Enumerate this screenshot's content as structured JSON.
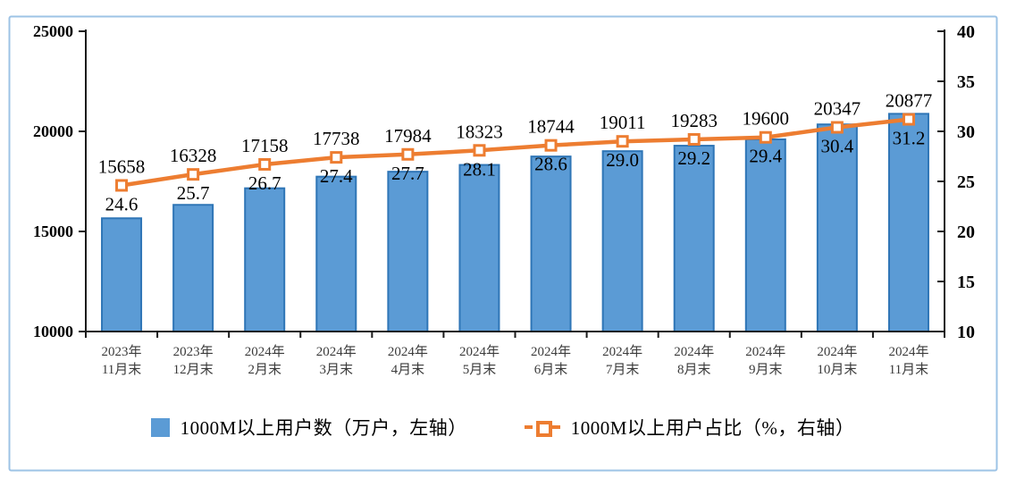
{
  "frame": {
    "border_color": "#9DC3E6",
    "background": "#ffffff"
  },
  "colors": {
    "bar_fill": "#5B9BD5",
    "bar_stroke": "#2E75B6",
    "line": "#ED7D31",
    "marker_fill": "#FFFFFF",
    "axis": "#1a1a1a",
    "label_text": "#000000",
    "category_text": "#3b3b3b"
  },
  "chart_data": {
    "type": "bar",
    "subtype": "bar-line-combo",
    "categories": [
      "2023年 11月末",
      "2023年 12月末",
      "2024年 2月末",
      "2024年 3月末",
      "2024年 4月末",
      "2024年 5月末",
      "2024年 6月末",
      "2024年 7月末",
      "2024年 8月末",
      "2024年 9月末",
      "2024年 10月末",
      "2024年 11月末"
    ],
    "categories_two_line": [
      [
        "2023年",
        "11月末"
      ],
      [
        "2023年",
        "12月末"
      ],
      [
        "2024年",
        "2月末"
      ],
      [
        "2024年",
        "3月末"
      ],
      [
        "2024年",
        "4月末"
      ],
      [
        "2024年",
        "5月末"
      ],
      [
        "2024年",
        "6月末"
      ],
      [
        "2024年",
        "7月末"
      ],
      [
        "2024年",
        "8月末"
      ],
      [
        "2024年",
        "9月末"
      ],
      [
        "2024年",
        "10月末"
      ],
      [
        "2024年",
        "11月末"
      ]
    ],
    "series": [
      {
        "name": "1000M以上用户数（万户，左轴）",
        "type": "bar",
        "axis": "left",
        "values": [
          15658,
          16328,
          17158,
          17738,
          17984,
          18323,
          18744,
          19011,
          19283,
          19600,
          20347,
          20877
        ]
      },
      {
        "name": "1000M以上用户占比（%，右轴）",
        "type": "line",
        "axis": "right",
        "values": [
          24.6,
          25.7,
          26.7,
          27.4,
          27.7,
          28.1,
          28.6,
          29.0,
          29.2,
          29.4,
          30.4,
          31.2
        ]
      }
    ],
    "left_axis": {
      "min": 10000,
      "max": 25000,
      "ticks": [
        25000,
        20000,
        15000,
        10000
      ]
    },
    "right_axis": {
      "min": 10,
      "max": 40,
      "ticks": [
        40,
        35,
        30,
        25,
        20,
        15,
        10
      ]
    },
    "grid": false,
    "data_labels": true,
    "legend_position": "bottom",
    "title": ""
  },
  "legend": {
    "items": [
      {
        "label": "1000M以上用户数（万户，左轴）",
        "swatch": "bar-swatch"
      },
      {
        "label": "1000M以上用户占比（%，右轴）",
        "swatch": "line-marker-swatch"
      }
    ]
  }
}
